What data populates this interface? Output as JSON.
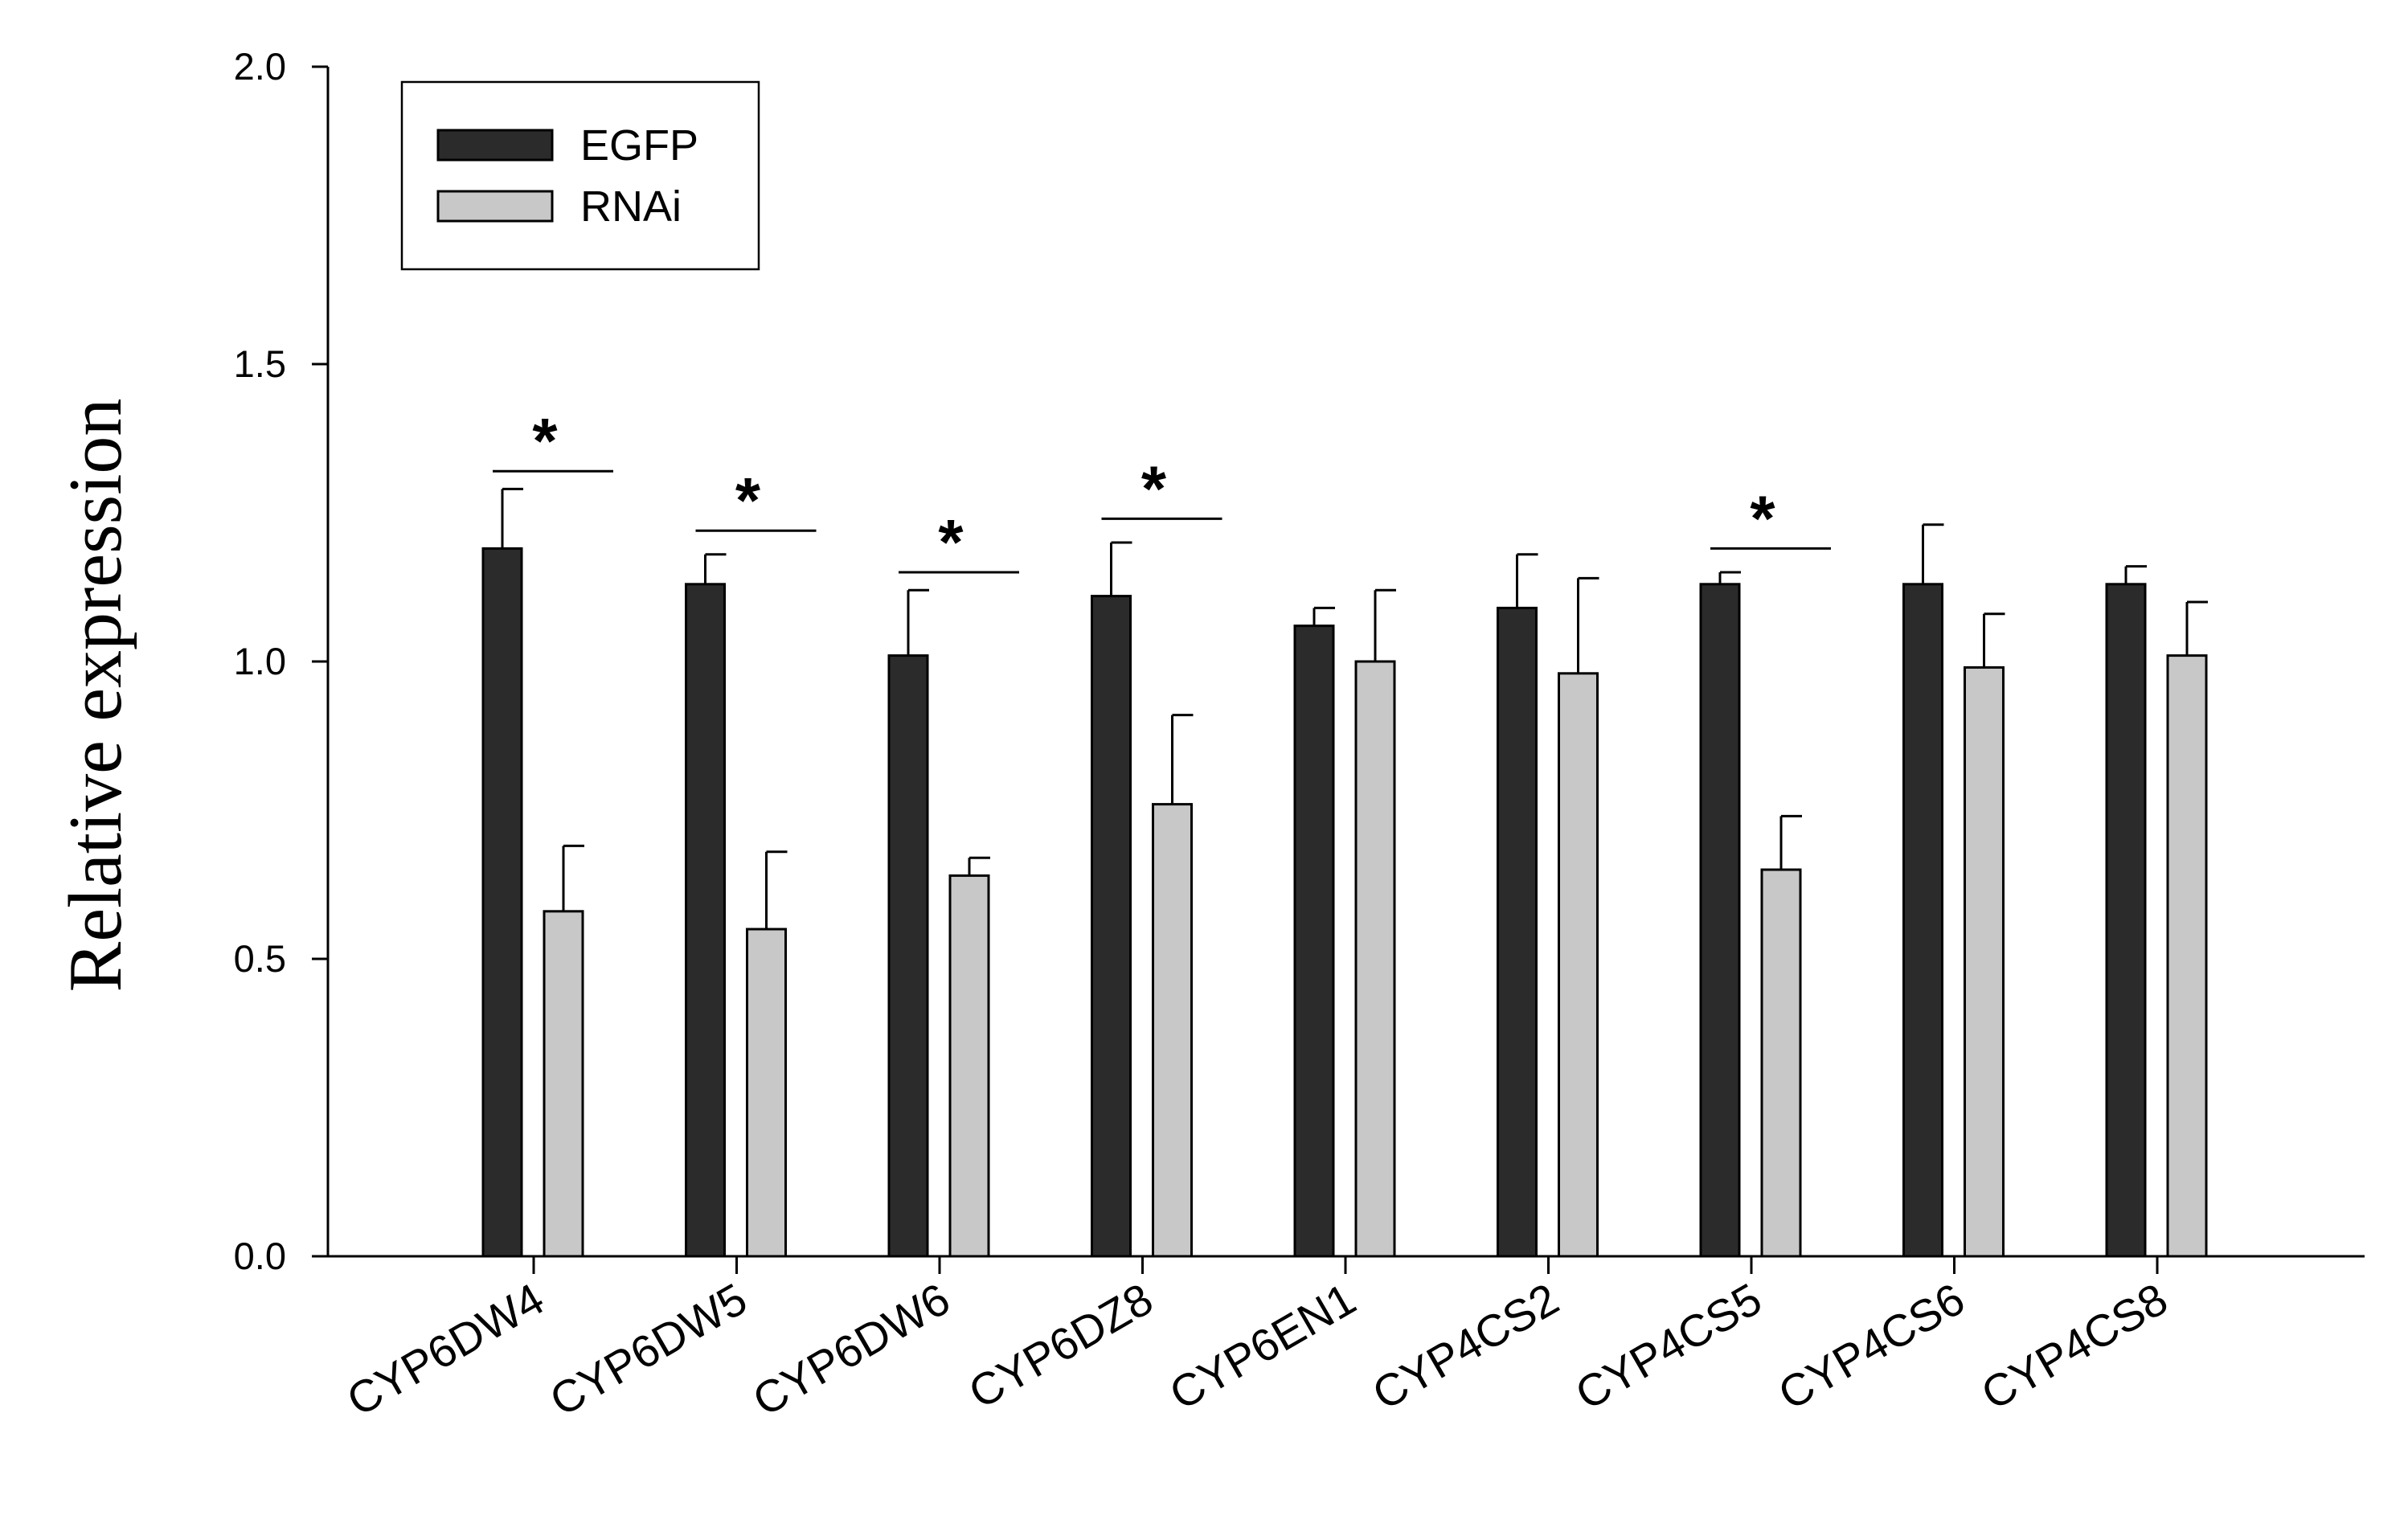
{
  "chart_data": {
    "type": "bar",
    "title": "",
    "xlabel": "",
    "ylabel": "Relative expression",
    "ylim": [
      0,
      2.0
    ],
    "yticks": [
      "0.0",
      "0.5",
      "1.0",
      "1.5",
      "2.0"
    ],
    "categories": [
      "CYP6DW4",
      "CYP6DW5",
      "CYP6DW6",
      "CYP6DZ8",
      "CYP6EN1",
      "CYP4CS2",
      "CYP4CS5",
      "CYP4CS6",
      "CYP4CS8"
    ],
    "series": [
      {
        "name": "EGFP",
        "color": "#2b2b2b",
        "values": [
          1.19,
          1.13,
          1.01,
          1.11,
          1.06,
          1.09,
          1.13,
          1.13,
          1.13
        ],
        "errors": [
          0.1,
          0.05,
          0.11,
          0.09,
          0.03,
          0.09,
          0.02,
          0.1,
          0.03
        ]
      },
      {
        "name": "RNAi",
        "color": "#c8c8c8",
        "values": [
          0.58,
          0.55,
          0.64,
          0.76,
          1.0,
          0.98,
          0.65,
          0.99,
          1.01
        ],
        "errors": [
          0.11,
          0.13,
          0.03,
          0.15,
          0.12,
          0.16,
          0.09,
          0.09,
          0.09
        ]
      }
    ],
    "significance": [
      {
        "category": "CYP6DW4",
        "marker": "*",
        "line_level": 1.32
      },
      {
        "category": "CYP6DW5",
        "marker": "*",
        "line_level": 1.22
      },
      {
        "category": "CYP6DW6",
        "marker": "*",
        "line_level": 1.15
      },
      {
        "category": "CYP6DZ8",
        "marker": "*",
        "line_level": 1.24
      },
      {
        "category": "CYP4CS5",
        "marker": "*",
        "line_level": 1.19
      }
    ],
    "legend": {
      "position": "top-left",
      "entries": [
        "EGFP",
        "RNAi"
      ]
    }
  }
}
